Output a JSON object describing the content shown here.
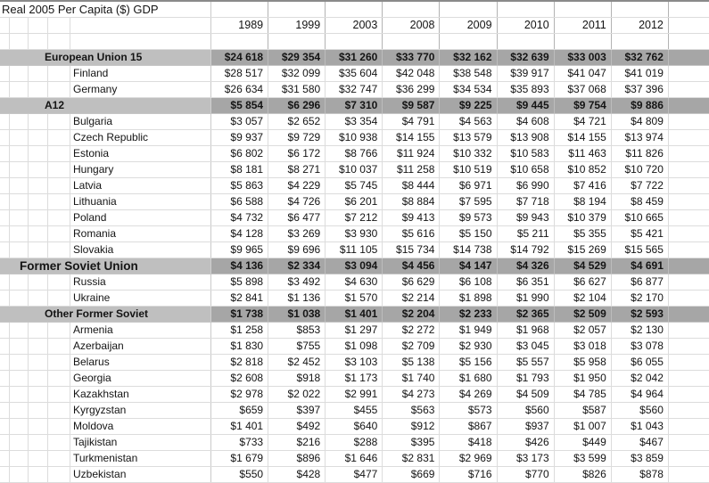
{
  "sheet": {
    "title": "Real 2005 Per Capita ($) GDP",
    "columns": [
      "1989",
      "1999",
      "2003",
      "2008",
      "2009",
      "2010",
      "2011",
      "2012"
    ],
    "rows": [
      {
        "label": "European Union 15",
        "type": "summary",
        "values": [
          "$24 618",
          "$29 354",
          "$31 260",
          "$33 770",
          "$32 162",
          "$32 639",
          "$33 003",
          "$32 762"
        ]
      },
      {
        "label": "Finland",
        "type": "country",
        "values": [
          "$28 517",
          "$32 099",
          "$35 604",
          "$42 048",
          "$38 548",
          "$39 917",
          "$41 047",
          "$41 019"
        ]
      },
      {
        "label": "Germany",
        "type": "country",
        "values": [
          "$26 634",
          "$31 580",
          "$32 747",
          "$36 299",
          "$34 534",
          "$35 893",
          "$37 068",
          "$37 396"
        ]
      },
      {
        "label": "A12",
        "type": "summary",
        "values": [
          "$5 854",
          "$6 296",
          "$7 310",
          "$9 587",
          "$9 225",
          "$9 445",
          "$9 754",
          "$9 886"
        ]
      },
      {
        "label": "Bulgaria",
        "type": "country",
        "values": [
          "$3 057",
          "$2 652",
          "$3 354",
          "$4 791",
          "$4 563",
          "$4 608",
          "$4 721",
          "$4 809"
        ]
      },
      {
        "label": "Czech Republic",
        "type": "country",
        "values": [
          "$9 937",
          "$9 729",
          "$10 938",
          "$14 155",
          "$13 579",
          "$13 908",
          "$14 155",
          "$13 974"
        ]
      },
      {
        "label": "Estonia",
        "type": "country",
        "values": [
          "$6 802",
          "$6 172",
          "$8 766",
          "$11 924",
          "$10 332",
          "$10 583",
          "$11 463",
          "$11 826"
        ]
      },
      {
        "label": "Hungary",
        "type": "country",
        "values": [
          "$8 181",
          "$8 271",
          "$10 037",
          "$11 258",
          "$10 519",
          "$10 658",
          "$10 852",
          "$10 720"
        ]
      },
      {
        "label": "Latvia",
        "type": "country",
        "values": [
          "$5 863",
          "$4 229",
          "$5 745",
          "$8 444",
          "$6 971",
          "$6 990",
          "$7 416",
          "$7 722"
        ]
      },
      {
        "label": "Lithuania",
        "type": "country",
        "values": [
          "$6 588",
          "$4 726",
          "$6 201",
          "$8 884",
          "$7 595",
          "$7 718",
          "$8 194",
          "$8 459"
        ]
      },
      {
        "label": "Poland",
        "type": "country",
        "values": [
          "$4 732",
          "$6 477",
          "$7 212",
          "$9 413",
          "$9 573",
          "$9 943",
          "$10 379",
          "$10 665"
        ]
      },
      {
        "label": "Romania",
        "type": "country",
        "values": [
          "$4 128",
          "$3 269",
          "$3 930",
          "$5 616",
          "$5 150",
          "$5 211",
          "$5 355",
          "$5 421"
        ]
      },
      {
        "label": "Slovakia",
        "type": "country",
        "values": [
          "$9 965",
          "$9 696",
          "$11 105",
          "$15 734",
          "$14 738",
          "$14 792",
          "$15 269",
          "$15 565"
        ]
      },
      {
        "label": "Former Soviet Union",
        "type": "major",
        "values": [
          "$4 136",
          "$2 334",
          "$3 094",
          "$4 456",
          "$4 147",
          "$4 326",
          "$4 529",
          "$4 691"
        ]
      },
      {
        "label": "Russia",
        "type": "country",
        "values": [
          "$5 898",
          "$3 492",
          "$4 630",
          "$6 629",
          "$6 108",
          "$6 351",
          "$6 627",
          "$6 877"
        ]
      },
      {
        "label": "Ukraine",
        "type": "country",
        "values": [
          "$2 841",
          "$1 136",
          "$1 570",
          "$2 214",
          "$1 898",
          "$1 990",
          "$2 104",
          "$2 170"
        ]
      },
      {
        "label": "Other Former Soviet",
        "type": "summary",
        "values": [
          "$1 738",
          "$1 038",
          "$1 401",
          "$2 204",
          "$2 233",
          "$2 365",
          "$2 509",
          "$2 593"
        ]
      },
      {
        "label": "Armenia",
        "type": "country",
        "values": [
          "$1 258",
          "$853",
          "$1 297",
          "$2 272",
          "$1 949",
          "$1 968",
          "$2 057",
          "$2 130"
        ]
      },
      {
        "label": "Azerbaijan",
        "type": "country",
        "values": [
          "$1 830",
          "$755",
          "$1 098",
          "$2 709",
          "$2 930",
          "$3 045",
          "$3 018",
          "$3 078"
        ]
      },
      {
        "label": "Belarus",
        "type": "country",
        "values": [
          "$2 818",
          "$2 452",
          "$3 103",
          "$5 138",
          "$5 156",
          "$5 557",
          "$5 958",
          "$6 055"
        ]
      },
      {
        "label": "Georgia",
        "type": "country",
        "values": [
          "$2 608",
          "$918",
          "$1 173",
          "$1 740",
          "$1 680",
          "$1 793",
          "$1 950",
          "$2 042"
        ]
      },
      {
        "label": "Kazakhstan",
        "type": "country",
        "values": [
          "$2 978",
          "$2 022",
          "$2 991",
          "$4 273",
          "$4 269",
          "$4 509",
          "$4 785",
          "$4 964"
        ]
      },
      {
        "label": "Kyrgyzstan",
        "type": "country",
        "values": [
          "$659",
          "$397",
          "$455",
          "$563",
          "$573",
          "$560",
          "$587",
          "$560"
        ]
      },
      {
        "label": "Moldova",
        "type": "country",
        "values": [
          "$1 401",
          "$492",
          "$640",
          "$912",
          "$867",
          "$937",
          "$1 007",
          "$1 043"
        ]
      },
      {
        "label": "Tajikistan",
        "type": "country",
        "values": [
          "$733",
          "$216",
          "$288",
          "$395",
          "$418",
          "$426",
          "$449",
          "$467"
        ]
      },
      {
        "label": "Turkmenistan",
        "type": "country",
        "values": [
          "$1 679",
          "$896",
          "$1 646",
          "$2 831",
          "$2 969",
          "$3 173",
          "$3 599",
          "$3 859"
        ]
      },
      {
        "label": "Uzbekistan",
        "type": "country",
        "values": [
          "$550",
          "$428",
          "$477",
          "$669",
          "$716",
          "$770",
          "$826",
          "$878"
        ]
      }
    ]
  },
  "colors": {
    "band_label_bg": "#bfbfbf",
    "band_data_bg": "#a6a6a6",
    "gridline": "#dcdcdc",
    "top_border": "#8a8a8a"
  }
}
